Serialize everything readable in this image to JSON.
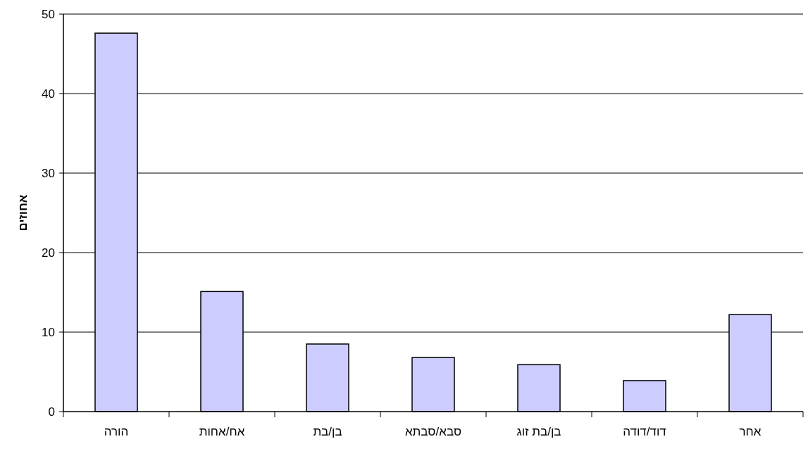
{
  "chart_data": {
    "type": "bar",
    "ylabel": "אחוזים",
    "categories": [
      "הורה",
      "אח/אחות",
      "בן/בת",
      "סבא/סבתא",
      "בן/בת זוג",
      "דוד/דודה",
      "אחר"
    ],
    "values": [
      47.6,
      15.1,
      8.5,
      6.8,
      5.9,
      3.9,
      12.2
    ],
    "color": "#ccccff",
    "ylim": [
      0,
      50
    ],
    "yticks": [
      0,
      10,
      20,
      30,
      40,
      50
    ],
    "grid": "y"
  }
}
